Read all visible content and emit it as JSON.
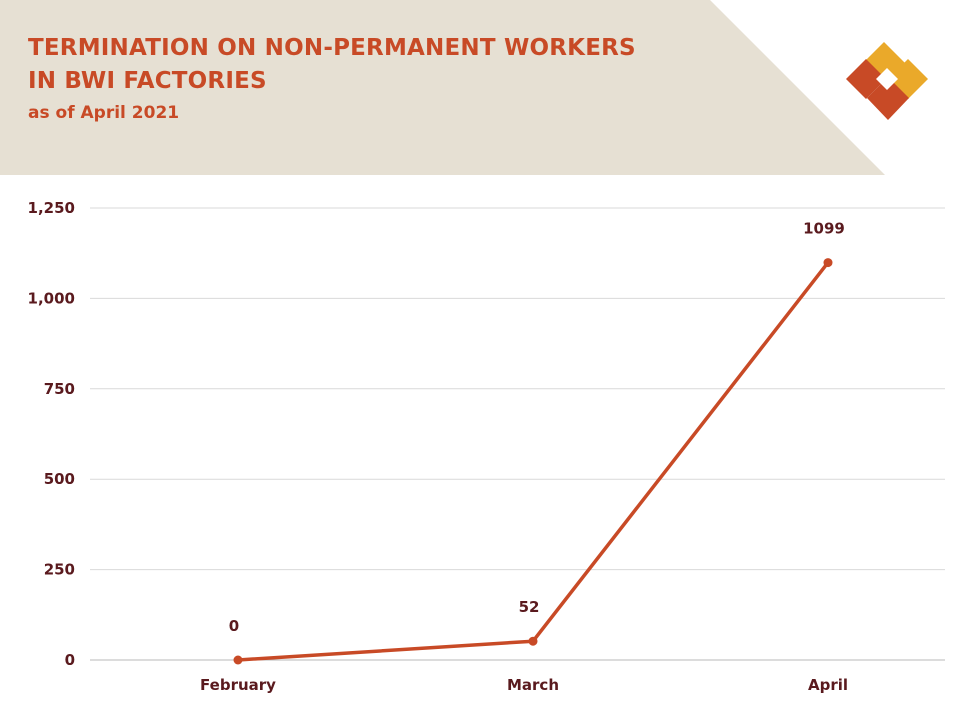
{
  "header": {
    "title_line1": "TERMINATION ON NON-PERMANENT WORKERS",
    "title_line2": "IN BWI FACTORIES",
    "subtitle": "as of April 2021"
  },
  "colors": {
    "accent": "#c84a26",
    "header_bg": "#e6e0d3",
    "text_dark": "#5a1a1e",
    "grid": "#d9d9d9",
    "logo_yellow": "#eaa92a",
    "logo_orange": "#c84a26"
  },
  "logo": {
    "icon": "bwi-logo-icon"
  },
  "chart_data": {
    "type": "line",
    "categories": [
      "February",
      "March",
      "April"
    ],
    "values": [
      0,
      52,
      1099
    ],
    "data_labels": [
      "0",
      "52",
      "1099"
    ],
    "yticks": [
      0,
      250,
      500,
      750,
      1000,
      1250
    ],
    "ytick_labels": [
      "0",
      "250",
      "500",
      "750",
      "1,000",
      "1,250"
    ],
    "ylim": [
      0,
      1250
    ],
    "grid": true,
    "legend": "none",
    "title": "TERMINATION ON NON-PERMANENT WORKERS IN BWI FACTORIES",
    "subtitle": "as of April 2021"
  }
}
